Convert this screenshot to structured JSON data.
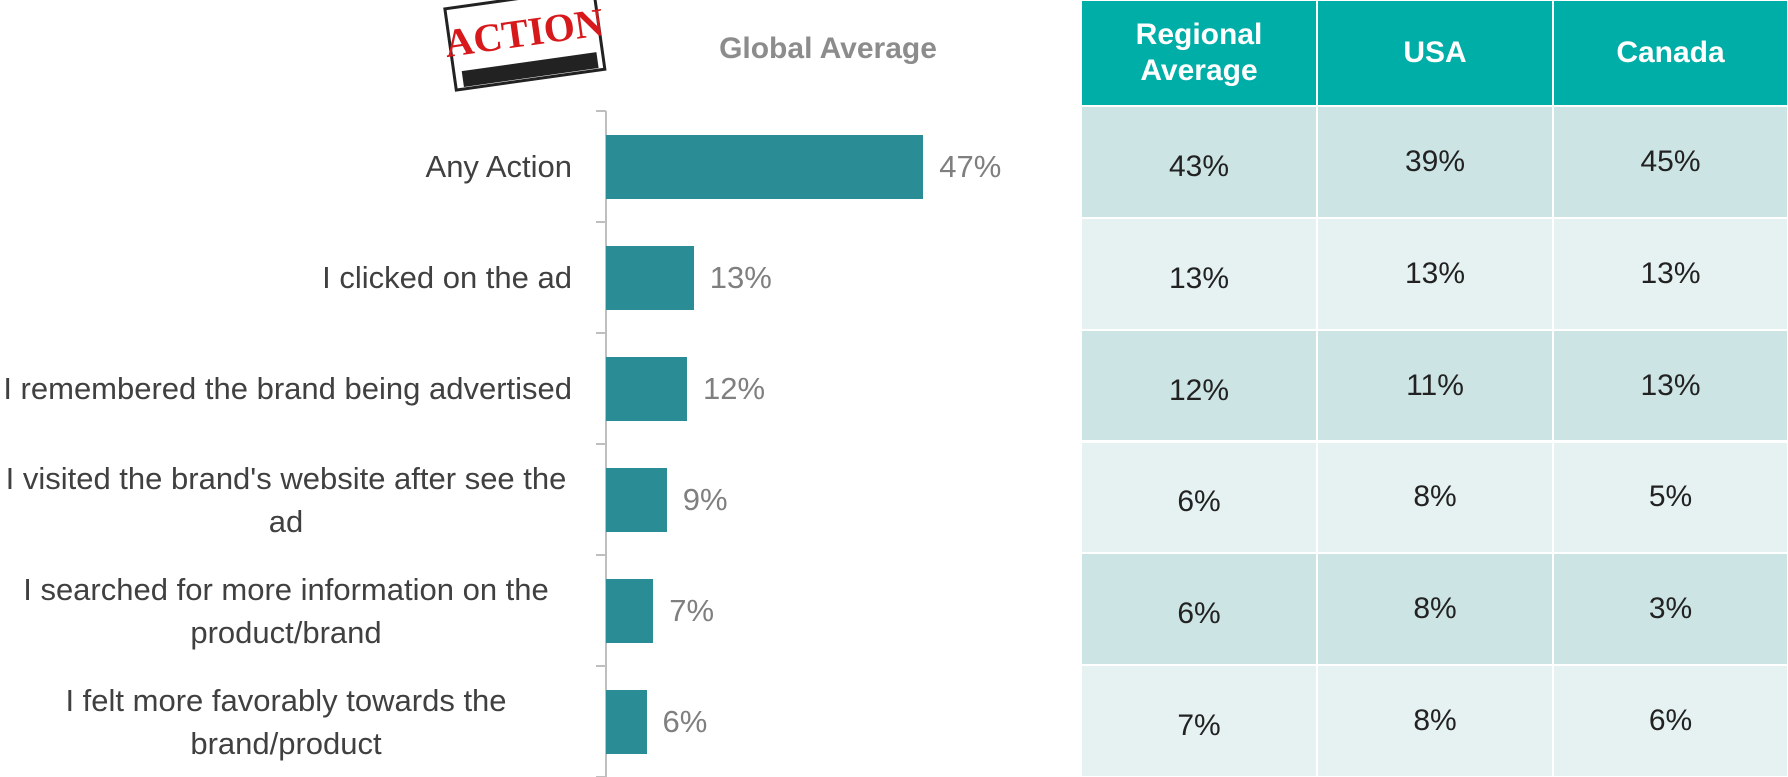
{
  "logo": "ACTION",
  "chart_data": {
    "type": "bar",
    "orientation": "horizontal",
    "title": "Global Average",
    "categories": [
      "Any Action",
      "I clicked on the ad",
      "I remembered the brand being advertised",
      "I visited the brand's website after see the ad",
      "I searched for more information on the product/brand",
      "I felt more favorably towards the brand/product"
    ],
    "values": [
      47,
      13,
      12,
      9,
      7,
      6
    ],
    "value_labels": [
      "47%",
      "13%",
      "12%",
      "9%",
      "7%",
      "6%"
    ],
    "color": "#2a8d96"
  },
  "table": {
    "header": [
      "Regional Average",
      "USA",
      "Canada"
    ],
    "rows": [
      [
        "43%",
        "39%",
        "45%"
      ],
      [
        "13%",
        "13%",
        "13%"
      ],
      [
        "12%",
        "11%",
        "13%"
      ],
      [
        "6%",
        "8%",
        "5%"
      ],
      [
        "6%",
        "8%",
        "3%"
      ],
      [
        "7%",
        "8%",
        "6%"
      ]
    ]
  }
}
